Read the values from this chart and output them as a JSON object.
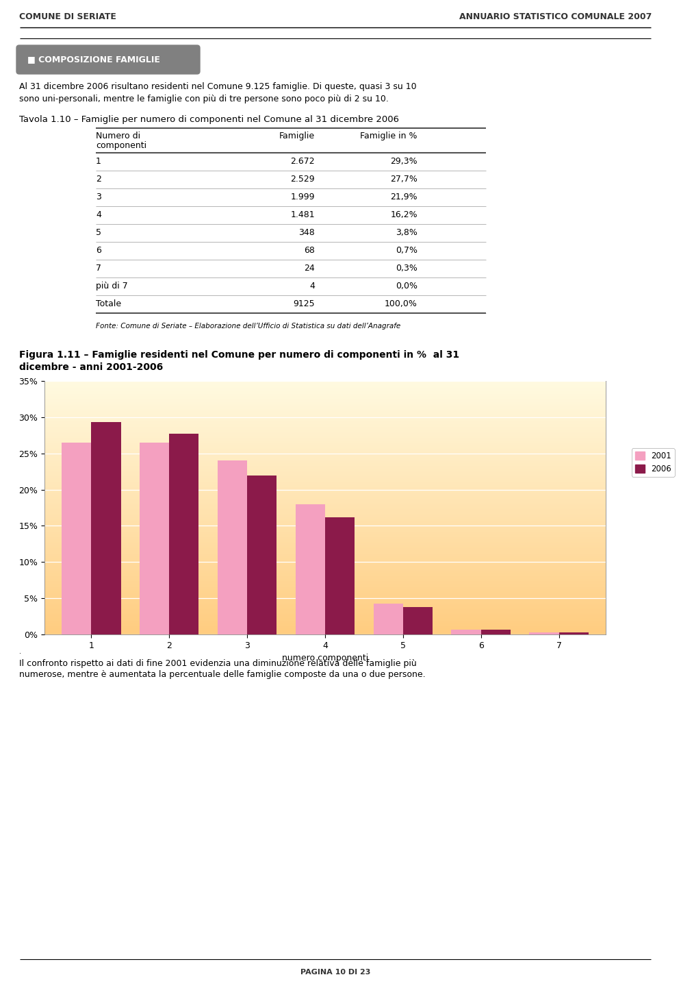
{
  "header_left": "COMUNE DI SERIATE",
  "header_right": "ANNUARIO STATISTICO COMUNALE 2007",
  "section_title": "COMPOSIZIONE FAMIGLIE",
  "intro_line1": "Al 31 dicembre 2006 risultano residenti nel Comune 9.125 famiglie. Di queste, quasi 3 su 10",
  "intro_line2": "sono uni-personali, mentre le famiglie con più di tre persone sono poco più di 2 su 10.",
  "tavola_title": "Tavola 1.10 – Famiglie per numero di componenti nel Comune al 31 dicembre 2006",
  "table_rows": [
    [
      "1",
      "2.672",
      "29,3%"
    ],
    [
      "2",
      "2.529",
      "27,7%"
    ],
    [
      "3",
      "1.999",
      "21,9%"
    ],
    [
      "4",
      "1.481",
      "16,2%"
    ],
    [
      "5",
      "348",
      "3,8%"
    ],
    [
      "6",
      "68",
      "0,7%"
    ],
    [
      "7",
      "24",
      "0,3%"
    ],
    [
      "più di 7",
      "4",
      "0,0%"
    ],
    [
      "Totale",
      "9125",
      "100,0%"
    ]
  ],
  "fonte": "Fonte: Comune di Seriate – Elaborazione dell’Ufficio di Statistica su dati dell’Anagrafe",
  "figura_title_line1": "Figura 1.11 – Famiglie residenti nel Comune per numero di componenti in %  al 31",
  "figura_title_line2": "dicembre - anni 2001-2006",
  "chart_xlabel": "numero componenti",
  "chart_categories": [
    1,
    2,
    3,
    4,
    5,
    6,
    7
  ],
  "values_2001": [
    26.5,
    26.5,
    24.0,
    18.0,
    4.3,
    0.7,
    0.3
  ],
  "values_2006": [
    29.3,
    27.7,
    21.9,
    16.2,
    3.8,
    0.7,
    0.3
  ],
  "color_2001": "#F4A0C0",
  "color_2006": "#8B1A4A",
  "ylim": [
    0,
    35
  ],
  "yticks": [
    0,
    5,
    10,
    15,
    20,
    25,
    30,
    35
  ],
  "legend_2001": "2001",
  "legend_2006": "2006",
  "footer_line1": "Il confronto rispetto ai dati di fine 2001 evidenzia una diminuzione relativa delle famiglie più",
  "footer_line2": "numerose, mentre è aumentata la percentuale delle famiglie composte da una o due persone.",
  "page_text": "PAGINA 10 DI 23",
  "section_bg": "#808080",
  "section_text_color": "#FFFFFF",
  "table_line_color": "#999999",
  "table_thick_line_color": "#555555"
}
